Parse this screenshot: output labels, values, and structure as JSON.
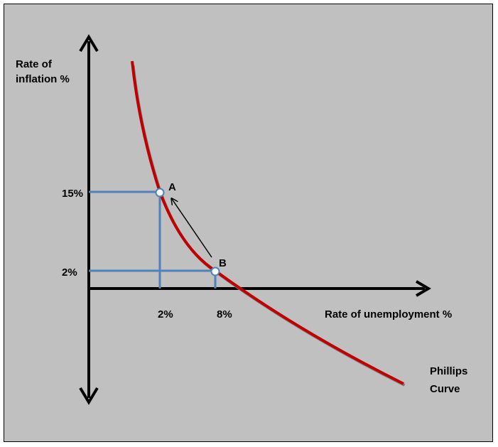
{
  "y_axis_label": [
    "Rate of",
    "inflation %"
  ],
  "x_axis_label": "Rate of unemployment %",
  "curve_label": [
    "Phillips",
    "Curve"
  ],
  "y_ticks": [
    "15%",
    "2%"
  ],
  "x_ticks": [
    "2%",
    "8%"
  ],
  "points": [
    {
      "name": "A",
      "unemployment": "2%",
      "inflation": "15%"
    },
    {
      "name": "B",
      "unemployment": "8%",
      "inflation": "2%"
    }
  ],
  "colors": {
    "background": "#c0c0c0",
    "curve": "#c00000",
    "guides": "#4f81bd",
    "axes": "#000000"
  }
}
